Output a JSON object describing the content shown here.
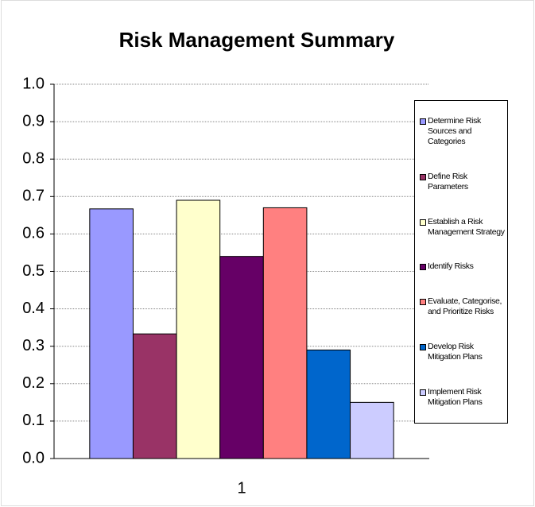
{
  "chart_data": {
    "type": "bar",
    "title": "Risk Management Summary",
    "categories": [
      "1"
    ],
    "series": [
      {
        "name": "Determine Risk Sources and Categories",
        "color": "#9999ff",
        "values": [
          0.667
        ]
      },
      {
        "name": "Define Risk Parameters",
        "color": "#993366",
        "values": [
          0.333
        ]
      },
      {
        "name": "Establish a Risk Management Strategy",
        "color": "#ffffcc",
        "values": [
          0.69
        ]
      },
      {
        "name": "Identify Risks",
        "color": "#660066",
        "values": [
          0.54
        ]
      },
      {
        "name": "Evaluate, Categorise, and Prioritize Risks",
        "color": "#ff8080",
        "values": [
          0.67
        ]
      },
      {
        "name": "Develop Risk Mitigation Plans",
        "color": "#0066cc",
        "values": [
          0.29
        ]
      },
      {
        "name": "Implement Risk Mitigation Plans",
        "color": "#ccccff",
        "values": [
          0.15
        ]
      }
    ],
    "ylim": [
      0,
      1
    ],
    "yticks": [
      {
        "value": 0,
        "label": "0.0"
      },
      0.1,
      0.2,
      0.3,
      0.4,
      0.5,
      0.6,
      0.7,
      0.8,
      0.9,
      {
        "value": 1,
        "label": "1.0"
      }
    ],
    "grid": true,
    "legend": "right"
  }
}
